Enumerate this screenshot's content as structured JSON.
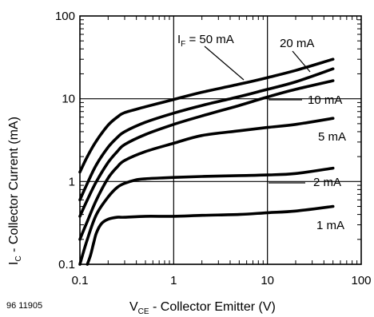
{
  "figure_id": "96 11905",
  "chart_data": {
    "type": "line",
    "xscale": "log",
    "yscale": "log",
    "xlim": [
      0.1,
      100
    ],
    "ylim": [
      0.1,
      100
    ],
    "grid": true,
    "legend": "none",
    "xlabel": {
      "main": "V",
      "sub": "CE",
      "rest": " - Collector Emitter (V)"
    },
    "ylabel": {
      "main": "I",
      "sub": "C",
      "rest": " - Collector Current (mA)"
    },
    "x_ticks": [
      {
        "value": 0.1,
        "label": "0.1"
      },
      {
        "value": 1,
        "label": "1"
      },
      {
        "value": 10,
        "label": "10"
      },
      {
        "value": 100,
        "label": "100"
      }
    ],
    "y_ticks": [
      {
        "value": 0.1,
        "label": "0.1"
      },
      {
        "value": 1,
        "label": "1"
      },
      {
        "value": 10,
        "label": "10"
      },
      {
        "value": 100,
        "label": "100"
      }
    ],
    "series": [
      {
        "name": "1 mA",
        "label": "1 mA",
        "x": [
          0.12,
          0.13,
          0.14,
          0.15,
          0.17,
          0.2,
          0.25,
          0.3,
          0.5,
          1,
          2,
          5,
          10,
          20,
          50
        ],
        "y": [
          0.1,
          0.13,
          0.18,
          0.24,
          0.31,
          0.35,
          0.37,
          0.37,
          0.38,
          0.38,
          0.39,
          0.4,
          0.42,
          0.44,
          0.5
        ]
      },
      {
        "name": "2 mA",
        "label": "2 mA",
        "x": [
          0.1,
          0.12,
          0.15,
          0.2,
          0.25,
          0.3,
          0.4,
          0.5,
          0.7,
          1,
          2,
          5,
          10,
          20,
          50
        ],
        "y": [
          0.1,
          0.2,
          0.4,
          0.65,
          0.85,
          0.95,
          1.05,
          1.08,
          1.1,
          1.12,
          1.15,
          1.18,
          1.2,
          1.25,
          1.45
        ]
      },
      {
        "name": "5 mA",
        "label": "5 mA",
        "x": [
          0.1,
          0.12,
          0.15,
          0.2,
          0.25,
          0.3,
          0.5,
          1,
          2,
          5,
          10,
          20,
          50
        ],
        "y": [
          0.2,
          0.33,
          0.6,
          1.1,
          1.5,
          1.8,
          2.3,
          2.9,
          3.6,
          4.1,
          4.5,
          4.9,
          5.8
        ]
      },
      {
        "name": "10 mA",
        "label": "10 mA",
        "x": [
          0.1,
          0.12,
          0.15,
          0.2,
          0.25,
          0.3,
          0.5,
          1,
          2,
          5,
          10,
          20,
          50
        ],
        "y": [
          0.38,
          0.6,
          1.0,
          1.7,
          2.3,
          2.8,
          3.7,
          4.9,
          6.2,
          8.3,
          10.5,
          13,
          16.5
        ]
      },
      {
        "name": "20 mA",
        "label": "20 mA",
        "x": [
          0.1,
          0.12,
          0.15,
          0.2,
          0.25,
          0.3,
          0.5,
          1,
          2,
          5,
          10,
          20,
          50
        ],
        "y": [
          0.6,
          0.95,
          1.6,
          2.6,
          3.4,
          4.0,
          5.2,
          6.7,
          8.3,
          10.6,
          13,
          16,
          23
        ]
      },
      {
        "name": "I_F = 50 mA",
        "label_main": "I",
        "label_sub": "F",
        "label_rest": " = 50 mA",
        "x": [
          0.1,
          0.12,
          0.15,
          0.2,
          0.25,
          0.3,
          0.5,
          1,
          2,
          5,
          10,
          20,
          50
        ],
        "y": [
          1.3,
          2.0,
          3.1,
          4.8,
          6.0,
          6.8,
          8.0,
          9.8,
          12,
          15,
          18,
          22,
          30
        ]
      }
    ]
  }
}
